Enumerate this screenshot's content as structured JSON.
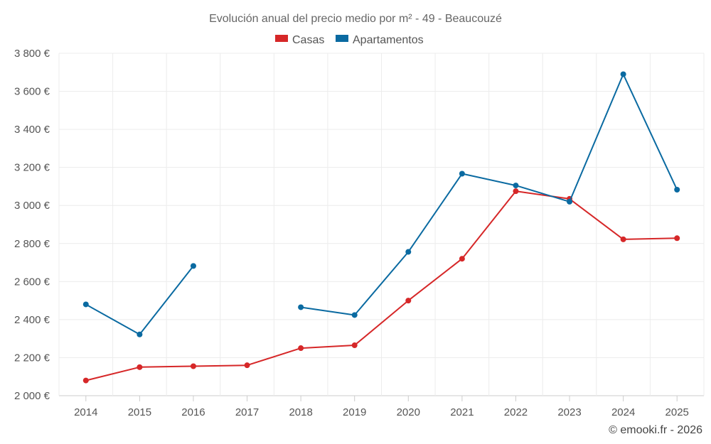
{
  "chart_data": {
    "type": "line",
    "title": "Evolución anual del precio medio por m² - 49 - Beaucouzé",
    "x": [
      "2014",
      "2015",
      "2016",
      "2017",
      "2018",
      "2019",
      "2020",
      "2021",
      "2022",
      "2023",
      "2024",
      "2025"
    ],
    "y_ticks": [
      "2 000 €",
      "2 200 €",
      "2 400 €",
      "2 600 €",
      "2 800 €",
      "3 000 €",
      "3 200 €",
      "3 400 €",
      "3 600 €",
      "3 800 €"
    ],
    "ylim": [
      2000,
      3800
    ],
    "grid": true,
    "legend_position": "top-center",
    "series": [
      {
        "name": "Casas",
        "color": "#d62728",
        "values": [
          2080,
          2150,
          2155,
          2160,
          2250,
          2265,
          2500,
          2720,
          3075,
          3035,
          2822,
          2828
        ]
      },
      {
        "name": "Apartamentos",
        "color": "#0a6aa1",
        "values": [
          2480,
          2322,
          2682,
          null,
          2465,
          2424,
          2756,
          3167,
          3105,
          3020,
          3690,
          3083
        ]
      }
    ],
    "credit": "© emooki.fr - 2026"
  }
}
